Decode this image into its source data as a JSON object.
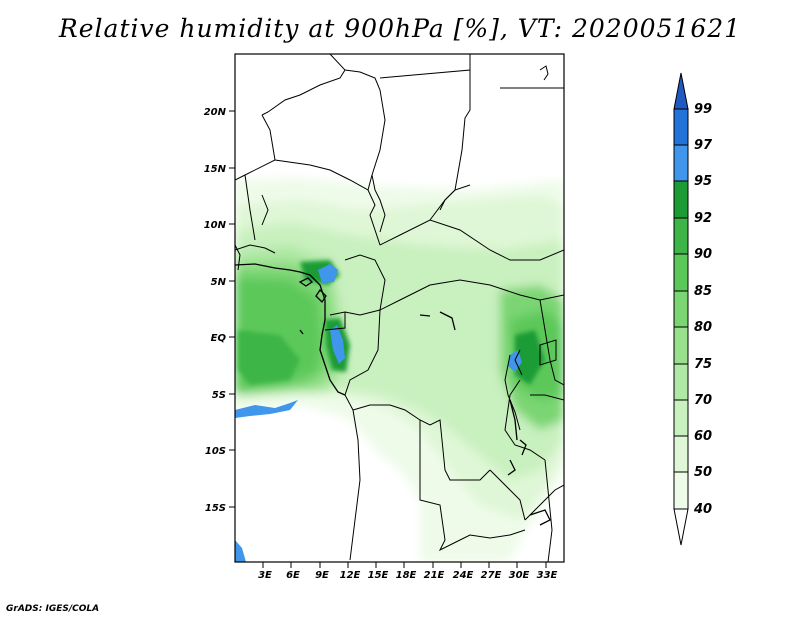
{
  "title": "Relative humidity at 900hPa [%], VT: 2020051621",
  "credit": "GrADS: IGES/COLA",
  "map": {
    "lat_labels": [
      "20N",
      "15N",
      "10N",
      "5N",
      "EQ",
      "5S",
      "10S",
      "15S"
    ],
    "lon_labels": [
      "3E",
      "6E",
      "9E",
      "12E",
      "15E",
      "18E",
      "21E",
      "24E",
      "27E",
      "30E",
      "33E"
    ]
  },
  "colorbar": {
    "levels": [
      "40",
      "50",
      "60",
      "70",
      "75",
      "80",
      "85",
      "90",
      "92",
      "95",
      "97",
      "99"
    ],
    "colors": {
      "lt40": "#ffffff",
      "40_50": "#eefbe9",
      "50_60": "#dff7d6",
      "60_70": "#c9f0bf",
      "70_75": "#b0e8a6",
      "75_80": "#98e08c",
      "80_85": "#7ad572",
      "85_90": "#5cc85a",
      "90_92": "#3db547",
      "92_95": "#1d9c36",
      "95_97": "#3f96ea",
      "97_99": "#2272d9",
      "gt99": "#1f59c2"
    }
  }
}
